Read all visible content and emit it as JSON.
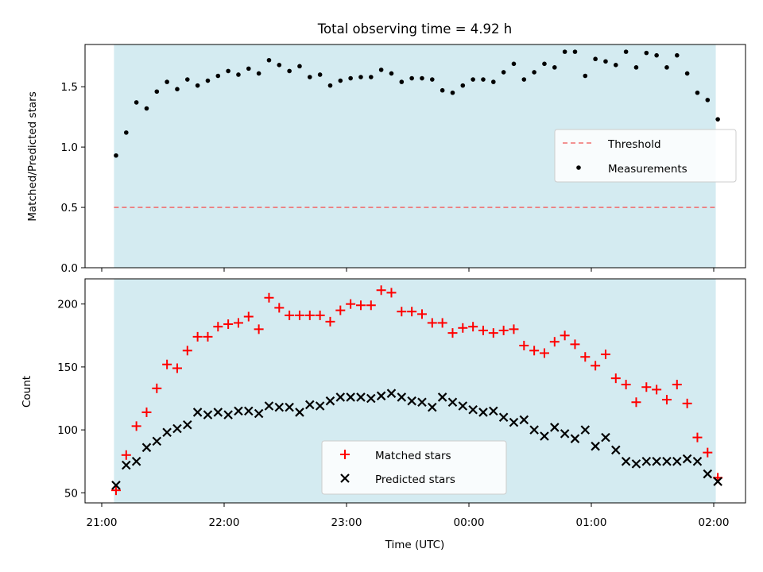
{
  "chart_data": [
    {
      "type": "scatter",
      "title": "Total observing time = 4.92 h",
      "ylabel": "Matched/Predicted stars",
      "xlabel": "",
      "ylim": [
        0,
        1.85
      ],
      "yticks": [
        0.0,
        0.5,
        1.0,
        1.5
      ],
      "ytick_labels": [
        "0.0",
        "0.5",
        "1.0",
        "1.5"
      ],
      "observing_window": [
        "21:06",
        "02:01"
      ],
      "threshold": 0.5,
      "legend": {
        "placement": "center-right",
        "threshold_label": "Threshold",
        "measurements_label": "Measurements"
      },
      "colors": {
        "window": "#d4ebf1",
        "threshold": "#f07070",
        "points": "#000000"
      },
      "series": [
        {
          "name": "Measurements",
          "x": [
            "21:07",
            "21:12",
            "21:17",
            "21:22",
            "21:27",
            "21:32",
            "21:37",
            "21:42",
            "21:47",
            "21:52",
            "21:57",
            "22:02",
            "22:07",
            "22:12",
            "22:17",
            "22:22",
            "22:27",
            "22:32",
            "22:37",
            "22:42",
            "22:47",
            "22:52",
            "22:57",
            "23:02",
            "23:07",
            "23:12",
            "23:17",
            "23:22",
            "23:27",
            "23:32",
            "23:37",
            "23:42",
            "23:47",
            "23:52",
            "23:57",
            "00:02",
            "00:07",
            "00:12",
            "00:17",
            "00:22",
            "00:27",
            "00:32",
            "00:37",
            "00:42",
            "00:47",
            "00:52",
            "00:57",
            "01:02",
            "01:07",
            "01:12",
            "01:17",
            "01:22",
            "01:27",
            "01:32",
            "01:37",
            "01:42",
            "01:47",
            "01:52",
            "01:57",
            "02:02"
          ],
          "values": [
            0.93,
            1.12,
            1.37,
            1.32,
            1.46,
            1.54,
            1.48,
            1.56,
            1.51,
            1.55,
            1.59,
            1.63,
            1.6,
            1.65,
            1.61,
            1.72,
            1.68,
            1.63,
            1.67,
            1.58,
            1.6,
            1.51,
            1.55,
            1.57,
            1.58,
            1.58,
            1.64,
            1.61,
            1.54,
            1.57,
            1.57,
            1.56,
            1.47,
            1.45,
            1.51,
            1.56,
            1.56,
            1.54,
            1.62,
            1.69,
            1.56,
            1.62,
            1.69,
            1.66,
            1.79,
            1.79,
            1.59,
            1.73,
            1.71,
            1.68,
            1.79,
            1.66,
            1.78,
            1.76,
            1.66,
            1.76,
            1.61,
            1.45,
            1.39,
            1.23
          ]
        }
      ]
    },
    {
      "type": "scatter",
      "title": "",
      "ylabel": "Count",
      "xlabel": "Time (UTC)",
      "ylim": [
        42,
        220
      ],
      "yticks": [
        50,
        100,
        150,
        200
      ],
      "ytick_labels": [
        "50",
        "100",
        "150",
        "200"
      ],
      "xticks": [
        "21:00",
        "22:00",
        "23:00",
        "00:00",
        "01:00",
        "02:00"
      ],
      "observing_window": [
        "21:06",
        "02:01"
      ],
      "legend": {
        "placement": "lower-center"
      },
      "colors": {
        "window": "#d4ebf1",
        "matched": "#ff0000",
        "predicted": "#000000"
      },
      "x": [
        "21:07",
        "21:12",
        "21:17",
        "21:22",
        "21:27",
        "21:32",
        "21:37",
        "21:42",
        "21:47",
        "21:52",
        "21:57",
        "22:02",
        "22:07",
        "22:12",
        "22:17",
        "22:22",
        "22:27",
        "22:32",
        "22:37",
        "22:42",
        "22:47",
        "22:52",
        "22:57",
        "23:02",
        "23:07",
        "23:12",
        "23:17",
        "23:22",
        "23:27",
        "23:32",
        "23:37",
        "23:42",
        "23:47",
        "23:52",
        "23:57",
        "00:02",
        "00:07",
        "00:12",
        "00:17",
        "00:22",
        "00:27",
        "00:32",
        "00:37",
        "00:42",
        "00:47",
        "00:52",
        "00:57",
        "01:02",
        "01:07",
        "01:12",
        "01:17",
        "01:22",
        "01:27",
        "01:32",
        "01:37",
        "01:42",
        "01:47",
        "01:52",
        "01:57",
        "02:02"
      ],
      "series": [
        {
          "name": "Matched stars",
          "marker": "plus",
          "values": [
            52,
            80,
            103,
            114,
            133,
            152,
            149,
            163,
            174,
            174,
            182,
            184,
            185,
            190,
            180,
            205,
            197,
            191,
            191,
            191,
            191,
            186,
            195,
            200,
            199,
            199,
            211,
            209,
            194,
            194,
            192,
            185,
            185,
            177,
            181,
            182,
            179,
            177,
            179,
            180,
            167,
            163,
            161,
            170,
            175,
            168,
            158,
            151,
            160,
            141,
            136,
            122,
            134,
            132,
            124,
            136,
            121,
            94,
            82,
            62
          ]
        },
        {
          "name": "Predicted stars",
          "marker": "x",
          "values": [
            56,
            72,
            75,
            86,
            91,
            98,
            101,
            104,
            114,
            112,
            114,
            112,
            115,
            115,
            113,
            119,
            118,
            118,
            114,
            120,
            119,
            123,
            126,
            126,
            126,
            125,
            127,
            129,
            126,
            123,
            122,
            118,
            126,
            122,
            119,
            116,
            114,
            115,
            110,
            106,
            108,
            100,
            95,
            102,
            97,
            93,
            100,
            87,
            94,
            84,
            75,
            73,
            75,
            75,
            75,
            75,
            77,
            75,
            65,
            59
          ]
        }
      ]
    }
  ]
}
